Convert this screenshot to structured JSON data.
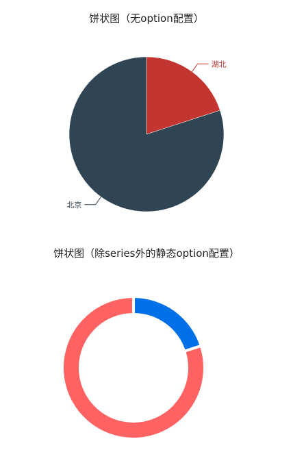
{
  "chart_data": [
    {
      "type": "pie",
      "title": "饼状图（无option配置）",
      "slices": [
        {
          "label": "湖北",
          "value": 20,
          "color": "#c23531"
        },
        {
          "label": "北京",
          "value": 80,
          "color": "#2f4554"
        }
      ]
    },
    {
      "type": "pie",
      "variant": "donut",
      "title": "饼状图（除series外的静态option配置）",
      "slices": [
        {
          "value": 20,
          "color": "#0070e8"
        },
        {
          "value": 80,
          "color": "#ff6262"
        }
      ]
    }
  ]
}
